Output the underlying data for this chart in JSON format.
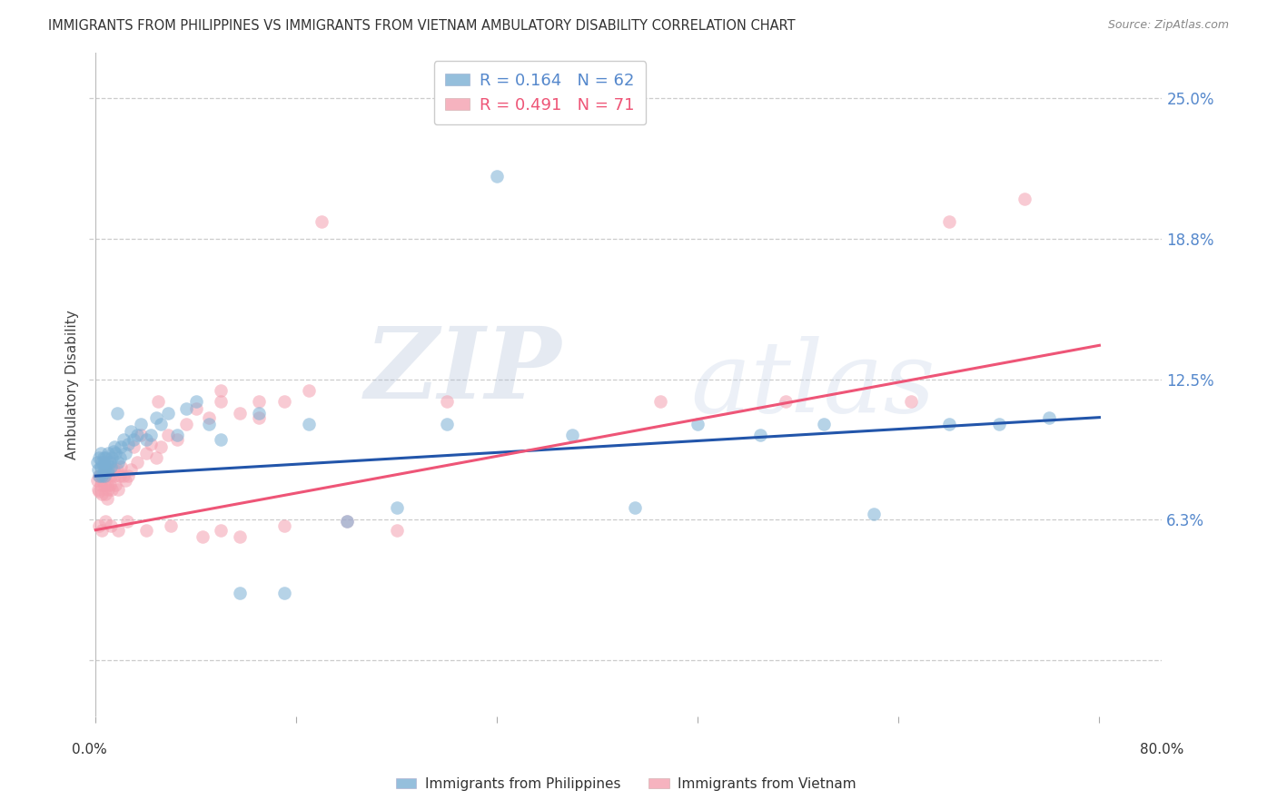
{
  "title": "IMMIGRANTS FROM PHILIPPINES VS IMMIGRANTS FROM VIETNAM AMBULATORY DISABILITY CORRELATION CHART",
  "source": "Source: ZipAtlas.com",
  "ylabel": "Ambulatory Disability",
  "yticks": [
    0.0,
    0.0625,
    0.125,
    0.1875,
    0.25
  ],
  "ytick_labels": [
    "",
    "6.3%",
    "12.5%",
    "18.8%",
    "25.0%"
  ],
  "ymin": -0.025,
  "ymax": 0.27,
  "xmin": -0.005,
  "xmax": 0.85,
  "xlim_data_max": 0.8,
  "legend_r_blue": "R = 0.164",
  "legend_n_blue": "N = 62",
  "legend_r_pink": "R = 0.491",
  "legend_n_pink": "N = 71",
  "legend_label_blue": "Immigrants from Philippines",
  "legend_label_pink": "Immigrants from Vietnam",
  "color_blue": "#7BAFD4",
  "color_pink": "#F4A0B0",
  "color_line_blue": "#2255AA",
  "color_line_pink": "#EE5577",
  "phil_trend_x": [
    0.0,
    0.8
  ],
  "phil_trend_y": [
    0.082,
    0.108
  ],
  "viet_trend_x": [
    0.0,
    0.8
  ],
  "viet_trend_y": [
    0.058,
    0.14
  ],
  "philippines_x": [
    0.001,
    0.002,
    0.003,
    0.003,
    0.004,
    0.004,
    0.005,
    0.005,
    0.006,
    0.006,
    0.007,
    0.007,
    0.008,
    0.008,
    0.009,
    0.009,
    0.01,
    0.01,
    0.011,
    0.012,
    0.013,
    0.014,
    0.015,
    0.016,
    0.017,
    0.018,
    0.019,
    0.02,
    0.022,
    0.024,
    0.026,
    0.028,
    0.03,
    0.033,
    0.036,
    0.04,
    0.044,
    0.048,
    0.052,
    0.058,
    0.065,
    0.072,
    0.08,
    0.09,
    0.1,
    0.115,
    0.13,
    0.15,
    0.17,
    0.2,
    0.24,
    0.28,
    0.32,
    0.38,
    0.43,
    0.48,
    0.53,
    0.58,
    0.62,
    0.68,
    0.72,
    0.76
  ],
  "philippines_y": [
    0.088,
    0.085,
    0.09,
    0.082,
    0.092,
    0.086,
    0.088,
    0.082,
    0.086,
    0.09,
    0.084,
    0.082,
    0.09,
    0.086,
    0.088,
    0.084,
    0.085,
    0.092,
    0.088,
    0.086,
    0.09,
    0.093,
    0.095,
    0.092,
    0.11,
    0.088,
    0.09,
    0.095,
    0.098,
    0.092,
    0.096,
    0.102,
    0.098,
    0.1,
    0.105,
    0.098,
    0.1,
    0.108,
    0.105,
    0.11,
    0.1,
    0.112,
    0.115,
    0.105,
    0.098,
    0.03,
    0.11,
    0.03,
    0.105,
    0.062,
    0.068,
    0.105,
    0.215,
    0.1,
    0.068,
    0.105,
    0.1,
    0.105,
    0.065,
    0.105,
    0.105,
    0.108
  ],
  "vietnam_x": [
    0.001,
    0.002,
    0.003,
    0.003,
    0.004,
    0.004,
    0.005,
    0.005,
    0.006,
    0.007,
    0.008,
    0.008,
    0.009,
    0.009,
    0.01,
    0.01,
    0.011,
    0.012,
    0.013,
    0.014,
    0.015,
    0.016,
    0.017,
    0.018,
    0.019,
    0.02,
    0.022,
    0.024,
    0.026,
    0.028,
    0.03,
    0.033,
    0.036,
    0.04,
    0.044,
    0.048,
    0.052,
    0.058,
    0.065,
    0.072,
    0.08,
    0.09,
    0.1,
    0.115,
    0.13,
    0.15,
    0.17,
    0.2,
    0.24,
    0.28,
    0.18,
    0.13,
    0.115,
    0.1,
    0.085,
    0.06,
    0.04,
    0.025,
    0.018,
    0.012,
    0.008,
    0.005,
    0.003,
    0.68,
    0.74,
    0.65,
    0.55,
    0.45,
    0.05,
    0.1,
    0.15
  ],
  "vietnam_y": [
    0.08,
    0.076,
    0.082,
    0.075,
    0.078,
    0.082,
    0.08,
    0.074,
    0.082,
    0.078,
    0.074,
    0.082,
    0.078,
    0.072,
    0.082,
    0.076,
    0.078,
    0.082,
    0.076,
    0.085,
    0.082,
    0.078,
    0.085,
    0.076,
    0.082,
    0.086,
    0.082,
    0.08,
    0.082,
    0.085,
    0.095,
    0.088,
    0.1,
    0.092,
    0.096,
    0.09,
    0.095,
    0.1,
    0.098,
    0.105,
    0.112,
    0.108,
    0.115,
    0.11,
    0.108,
    0.06,
    0.12,
    0.062,
    0.058,
    0.115,
    0.195,
    0.115,
    0.055,
    0.058,
    0.055,
    0.06,
    0.058,
    0.062,
    0.058,
    0.06,
    0.062,
    0.058,
    0.06,
    0.195,
    0.205,
    0.115,
    0.115,
    0.115,
    0.115,
    0.12,
    0.115
  ]
}
